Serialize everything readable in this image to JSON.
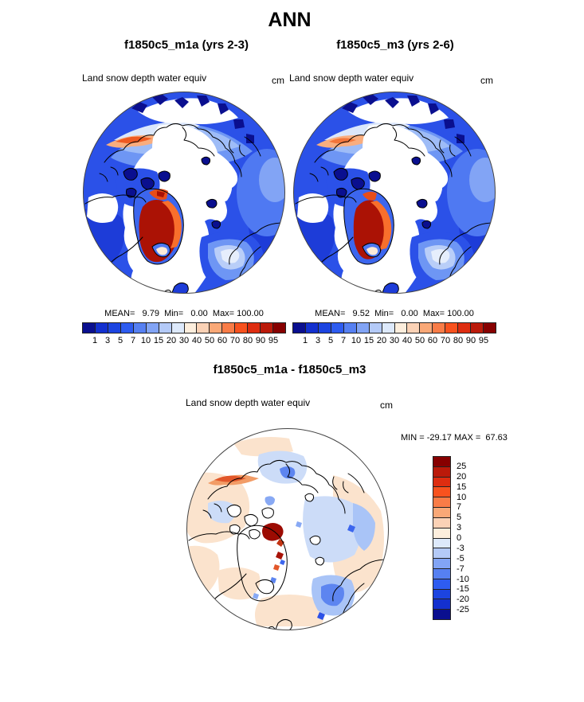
{
  "page": {
    "title": "ANN"
  },
  "panels": [
    {
      "title": "f1850c5_m1a (yrs 2-3)",
      "field_label": "Land snow depth water equiv",
      "units": "cm",
      "stats_text": "MEAN=   9.79  Min=   0.00  Max= 100.00"
    },
    {
      "title": "f1850c5_m3 (yrs 2-6)",
      "field_label": "Land snow depth water equiv",
      "units": "cm",
      "stats_text": "MEAN=   9.52  Min=   0.00  Max= 100.00"
    }
  ],
  "diff_panel": {
    "title": "f1850c5_m1a - f1850c5_m3",
    "field_label": "Land snow depth water equiv",
    "units": "cm",
    "stats_text": "MIN = -29.17 MAX =  67.63"
  },
  "value_colorbar": {
    "colors": [
      "#0a0f8f",
      "#1330cf",
      "#1c44e0",
      "#2e5cf0",
      "#5680f2",
      "#82a4f5",
      "#b4caf8",
      "#dde9fb",
      "#fdeedd",
      "#fbd2b6",
      "#f9a877",
      "#f97c47",
      "#f8521e",
      "#de2d10",
      "#bb1a0a",
      "#870000"
    ],
    "tick_labels": [
      "1",
      "3",
      "5",
      "7",
      "10",
      "15",
      "20",
      "30",
      "40",
      "50",
      "60",
      "70",
      "80",
      "90",
      "95"
    ]
  },
  "diff_colorbar": {
    "colors": [
      "#870000",
      "#bb1a0a",
      "#de2d10",
      "#f8521e",
      "#f97c47",
      "#f9a877",
      "#fbd2b6",
      "#fdeedd",
      "#dde9fb",
      "#b4caf8",
      "#82a4f5",
      "#5680f2",
      "#2e5cf0",
      "#1c44e0",
      "#1330cf",
      "#0a0f8f"
    ],
    "tick_labels": [
      "25",
      "20",
      "15",
      "10",
      "7",
      "5",
      "3",
      "0",
      "-3",
      "-5",
      "-7",
      "-10",
      "-15",
      "-20",
      "-25"
    ]
  },
  "chart_data": {
    "type": "heatmap",
    "subtype": "north-polar-stereographic map panels",
    "season": "ANN",
    "title": "ANN",
    "variable": "Land snow depth water equiv",
    "units": "cm",
    "contour_levels": [
      1,
      3,
      5,
      7,
      10,
      15,
      20,
      30,
      40,
      50,
      60,
      70,
      80,
      90,
      95
    ],
    "diff_contour_levels": [
      -25,
      -20,
      -15,
      -10,
      -7,
      -5,
      -3,
      0,
      3,
      5,
      7,
      10,
      15,
      20,
      25
    ],
    "panels": [
      {
        "name": "f1850c5_m1a",
        "years": "yrs 2-3",
        "mean": 9.79,
        "min": 0.0,
        "max": 100.0
      },
      {
        "name": "f1850c5_m3",
        "years": "yrs 2-6",
        "mean": 9.52,
        "min": 0.0,
        "max": 100.0
      },
      {
        "name": "f1850c5_m1a - f1850c5_m3",
        "min": -29.17,
        "max": 67.63
      }
    ],
    "legend_position": "horizontal bar below each top panel; vertical bar right of difference panel",
    "palette_name": "blue-white-red, 16 classes"
  }
}
